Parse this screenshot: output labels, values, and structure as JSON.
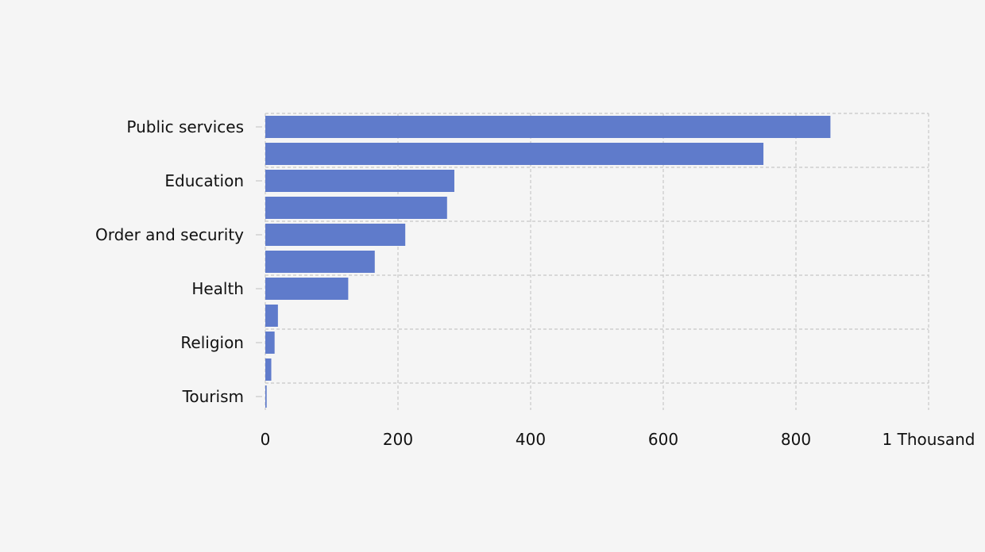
{
  "chart_data": {
    "type": "bar",
    "orientation": "horizontal",
    "categories": [
      "Public services",
      "",
      "Education",
      "",
      "Order and security",
      "",
      "Health",
      "",
      "Religion",
      "",
      "Tourism"
    ],
    "values": [
      852,
      751,
      285,
      274,
      211,
      165,
      125,
      19,
      14,
      9,
      2
    ],
    "x_ticks": [
      {
        "value": 0,
        "label": "0"
      },
      {
        "value": 200,
        "label": "200"
      },
      {
        "value": 400,
        "label": "400"
      },
      {
        "value": 600,
        "label": "600"
      },
      {
        "value": 800,
        "label": "800"
      },
      {
        "value": 1000,
        "label": "1 Thousand"
      }
    ],
    "xlim": [
      0,
      1000
    ],
    "title": "",
    "xlabel": "",
    "ylabel": "",
    "grid": true,
    "bar_color": "#5f7bcb",
    "grid_color": "#c8c8c8",
    "background_color": "#f5f5f5"
  }
}
